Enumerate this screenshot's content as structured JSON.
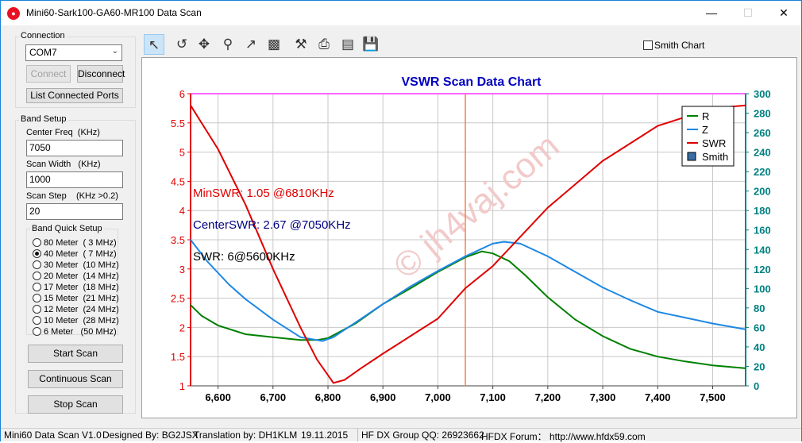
{
  "window": {
    "title": "Mini60-Sark100-GA60-MR100 Data Scan",
    "icon": "record-icon"
  },
  "connection": {
    "group_title": "Connection",
    "port_value": "COM7",
    "connect_label": "Connect",
    "disconnect_label": "Disconnect",
    "list_ports_label": "List Connected Ports"
  },
  "band_setup": {
    "group_title": "Band Setup",
    "center_freq_label": "Center Freq  (KHz)",
    "center_freq_value": "7050",
    "scan_width_label": "Scan Width   (KHz)",
    "scan_width_value": "1000",
    "scan_step_label": "Scan Step",
    "scan_step_hint": "(KHz >0.2)",
    "scan_step_value": "20",
    "quick_setup_title": "Band Quick Setup",
    "bands": [
      {
        "label": "80 Meter  ( 3 MHz)",
        "checked": false
      },
      {
        "label": "40 Meter  ( 7 MHz)",
        "checked": true
      },
      {
        "label": "30 Meter  (10 MHz)",
        "checked": false
      },
      {
        "label": "20 Meter  (14 MHz)",
        "checked": false
      },
      {
        "label": "17 Meter  (18 MHz)",
        "checked": false
      },
      {
        "label": "15 Meter  (21 MHz)",
        "checked": false
      },
      {
        "label": "12 Meter  (24 MHz)",
        "checked": false
      },
      {
        "label": "10 Meter  (28 MHz)",
        "checked": false
      },
      {
        "label": "6 Meter   (50 MHz)",
        "checked": false
      }
    ],
    "start_scan_label": "Start Scan",
    "continuous_scan_label": "Continuous Scan",
    "stop_scan_label": "Stop Scan"
  },
  "toolbar": {
    "icons": [
      "pointer-icon",
      "undo-zoom-icon",
      "pan-icon",
      "zoom-icon",
      "export-icon",
      "save-image-icon",
      "settings-icon",
      "print-icon",
      "print-preview-icon",
      "save-icon"
    ],
    "smith_chart_label": "Smith Chart",
    "smith_chart_checked": false
  },
  "chart_data": {
    "type": "line",
    "title": "VSWR Scan Data Chart",
    "xlim": [
      6550,
      7560
    ],
    "x_ticks": [
      "6,600",
      "6,700",
      "6,800",
      "6,900",
      "7,000",
      "7,100",
      "7,200",
      "7,300",
      "7,400",
      "7,500"
    ],
    "x_tick_values": [
      6600,
      6700,
      6800,
      6900,
      7000,
      7100,
      7200,
      7300,
      7400,
      7500
    ],
    "y_left": {
      "lim": [
        1,
        6
      ],
      "ticks": [
        "1",
        "1.5",
        "2",
        "2.5",
        "3",
        "3.5",
        "4",
        "4.5",
        "5",
        "5.5",
        "6"
      ],
      "color": "#e00000"
    },
    "y_right": {
      "lim": [
        0,
        300
      ],
      "ticks": [
        "0",
        "20",
        "40",
        "60",
        "80",
        "100",
        "120",
        "140",
        "160",
        "180",
        "200",
        "220",
        "240",
        "260",
        "280",
        "300"
      ],
      "color": "#008080"
    },
    "center_marker": 7050,
    "legend": [
      "R",
      "Z",
      "SWR",
      "Smith"
    ],
    "legend_placement": "top-right",
    "annotations": [
      {
        "text": "MinSWR: 1.05 @6810KHz",
        "color": "#e00000"
      },
      {
        "text": "CenterSWR: 2.67 @7050KHz",
        "color": "#000080"
      },
      {
        "text": "SWR: 6@5600KHz",
        "color": "#000000"
      }
    ],
    "series": [
      {
        "name": "R",
        "color": "#008000",
        "axis": "right",
        "x": [
          6550,
          6570,
          6600,
          6650,
          6700,
          6750,
          6780,
          6800,
          6850,
          6900,
          6950,
          7000,
          7050,
          7080,
          7100,
          7130,
          7160,
          7200,
          7250,
          7300,
          7350,
          7400,
          7450,
          7500,
          7560
        ],
        "values": [
          83,
          72,
          62,
          53,
          50,
          47,
          47,
          49,
          64,
          84,
          100,
          117,
          132,
          138,
          136,
          128,
          113,
          91,
          68,
          51,
          38,
          30,
          25,
          21,
          18
        ]
      },
      {
        "name": "Z",
        "color": "#1e88e5",
        "axis": "right",
        "x": [
          6550,
          6580,
          6620,
          6650,
          6700,
          6750,
          6790,
          6810,
          6850,
          6900,
          6950,
          7000,
          7050,
          7100,
          7120,
          7150,
          7200,
          7250,
          7300,
          7350,
          7400,
          7450,
          7500,
          7560
        ],
        "values": [
          150,
          128,
          104,
          89,
          68,
          50,
          46,
          50,
          65,
          84,
          102,
          118,
          133,
          146,
          148,
          146,
          133,
          117,
          101,
          88,
          76,
          70,
          64,
          58
        ]
      },
      {
        "name": "SWR",
        "color": "#e00000",
        "axis": "left",
        "x": [
          6550,
          6600,
          6650,
          6700,
          6750,
          6780,
          6810,
          6830,
          6860,
          6900,
          6950,
          7000,
          7050,
          7100,
          7150,
          7200,
          7250,
          7300,
          7350,
          7400,
          7450,
          7500,
          7560
        ],
        "values": [
          5.8,
          5.05,
          4.1,
          3.0,
          2.0,
          1.45,
          1.05,
          1.1,
          1.3,
          1.55,
          1.85,
          2.15,
          2.67,
          3.05,
          3.55,
          4.05,
          4.45,
          4.85,
          5.15,
          5.45,
          5.6,
          5.75,
          5.8
        ]
      }
    ]
  },
  "watermark": "© jh4vaj.com",
  "status": {
    "app": "Mini60 Data Scan V1.0",
    "designer": "Designed By: BG2JSX",
    "translator": "Translation by: DH1KLM",
    "date": "19.11.2015",
    "group": "HF DX Group QQ: 26923662",
    "forum": "HFDX Forum： http://www.hfdx59.com"
  }
}
